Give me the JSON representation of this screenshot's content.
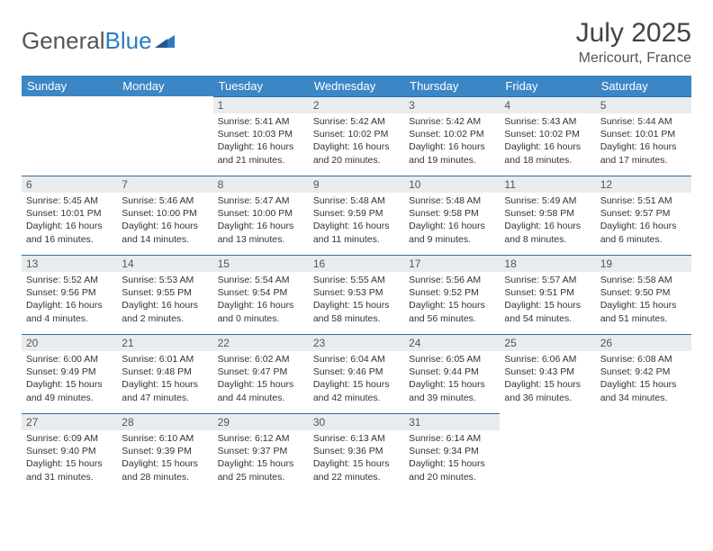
{
  "logo": {
    "part1": "General",
    "part2": "Blue"
  },
  "title": "July 2025",
  "subtitle": "Mericourt, France",
  "colors": {
    "header_bg": "#3d86c6",
    "header_text": "#ffffff",
    "daynum_bg": "#e9ecef",
    "rule": "#2f6fa8",
    "body_text": "#333333",
    "title_text": "#444444",
    "logo_gray": "#555555",
    "logo_blue": "#2f7bbf"
  },
  "weekdays": [
    "Sunday",
    "Monday",
    "Tuesday",
    "Wednesday",
    "Thursday",
    "Friday",
    "Saturday"
  ],
  "weeks": [
    [
      null,
      null,
      {
        "n": "1",
        "sr": "5:41 AM",
        "ss": "10:03 PM",
        "dl": "16 hours and 21 minutes."
      },
      {
        "n": "2",
        "sr": "5:42 AM",
        "ss": "10:02 PM",
        "dl": "16 hours and 20 minutes."
      },
      {
        "n": "3",
        "sr": "5:42 AM",
        "ss": "10:02 PM",
        "dl": "16 hours and 19 minutes."
      },
      {
        "n": "4",
        "sr": "5:43 AM",
        "ss": "10:02 PM",
        "dl": "16 hours and 18 minutes."
      },
      {
        "n": "5",
        "sr": "5:44 AM",
        "ss": "10:01 PM",
        "dl": "16 hours and 17 minutes."
      }
    ],
    [
      {
        "n": "6",
        "sr": "5:45 AM",
        "ss": "10:01 PM",
        "dl": "16 hours and 16 minutes."
      },
      {
        "n": "7",
        "sr": "5:46 AM",
        "ss": "10:00 PM",
        "dl": "16 hours and 14 minutes."
      },
      {
        "n": "8",
        "sr": "5:47 AM",
        "ss": "10:00 PM",
        "dl": "16 hours and 13 minutes."
      },
      {
        "n": "9",
        "sr": "5:48 AM",
        "ss": "9:59 PM",
        "dl": "16 hours and 11 minutes."
      },
      {
        "n": "10",
        "sr": "5:48 AM",
        "ss": "9:58 PM",
        "dl": "16 hours and 9 minutes."
      },
      {
        "n": "11",
        "sr": "5:49 AM",
        "ss": "9:58 PM",
        "dl": "16 hours and 8 minutes."
      },
      {
        "n": "12",
        "sr": "5:51 AM",
        "ss": "9:57 PM",
        "dl": "16 hours and 6 minutes."
      }
    ],
    [
      {
        "n": "13",
        "sr": "5:52 AM",
        "ss": "9:56 PM",
        "dl": "16 hours and 4 minutes."
      },
      {
        "n": "14",
        "sr": "5:53 AM",
        "ss": "9:55 PM",
        "dl": "16 hours and 2 minutes."
      },
      {
        "n": "15",
        "sr": "5:54 AM",
        "ss": "9:54 PM",
        "dl": "16 hours and 0 minutes."
      },
      {
        "n": "16",
        "sr": "5:55 AM",
        "ss": "9:53 PM",
        "dl": "15 hours and 58 minutes."
      },
      {
        "n": "17",
        "sr": "5:56 AM",
        "ss": "9:52 PM",
        "dl": "15 hours and 56 minutes."
      },
      {
        "n": "18",
        "sr": "5:57 AM",
        "ss": "9:51 PM",
        "dl": "15 hours and 54 minutes."
      },
      {
        "n": "19",
        "sr": "5:58 AM",
        "ss": "9:50 PM",
        "dl": "15 hours and 51 minutes."
      }
    ],
    [
      {
        "n": "20",
        "sr": "6:00 AM",
        "ss": "9:49 PM",
        "dl": "15 hours and 49 minutes."
      },
      {
        "n": "21",
        "sr": "6:01 AM",
        "ss": "9:48 PM",
        "dl": "15 hours and 47 minutes."
      },
      {
        "n": "22",
        "sr": "6:02 AM",
        "ss": "9:47 PM",
        "dl": "15 hours and 44 minutes."
      },
      {
        "n": "23",
        "sr": "6:04 AM",
        "ss": "9:46 PM",
        "dl": "15 hours and 42 minutes."
      },
      {
        "n": "24",
        "sr": "6:05 AM",
        "ss": "9:44 PM",
        "dl": "15 hours and 39 minutes."
      },
      {
        "n": "25",
        "sr": "6:06 AM",
        "ss": "9:43 PM",
        "dl": "15 hours and 36 minutes."
      },
      {
        "n": "26",
        "sr": "6:08 AM",
        "ss": "9:42 PM",
        "dl": "15 hours and 34 minutes."
      }
    ],
    [
      {
        "n": "27",
        "sr": "6:09 AM",
        "ss": "9:40 PM",
        "dl": "15 hours and 31 minutes."
      },
      {
        "n": "28",
        "sr": "6:10 AM",
        "ss": "9:39 PM",
        "dl": "15 hours and 28 minutes."
      },
      {
        "n": "29",
        "sr": "6:12 AM",
        "ss": "9:37 PM",
        "dl": "15 hours and 25 minutes."
      },
      {
        "n": "30",
        "sr": "6:13 AM",
        "ss": "9:36 PM",
        "dl": "15 hours and 22 minutes."
      },
      {
        "n": "31",
        "sr": "6:14 AM",
        "ss": "9:34 PM",
        "dl": "15 hours and 20 minutes."
      },
      null,
      null
    ]
  ],
  "labels": {
    "sunrise": "Sunrise: ",
    "sunset": "Sunset: ",
    "daylight": "Daylight: "
  }
}
